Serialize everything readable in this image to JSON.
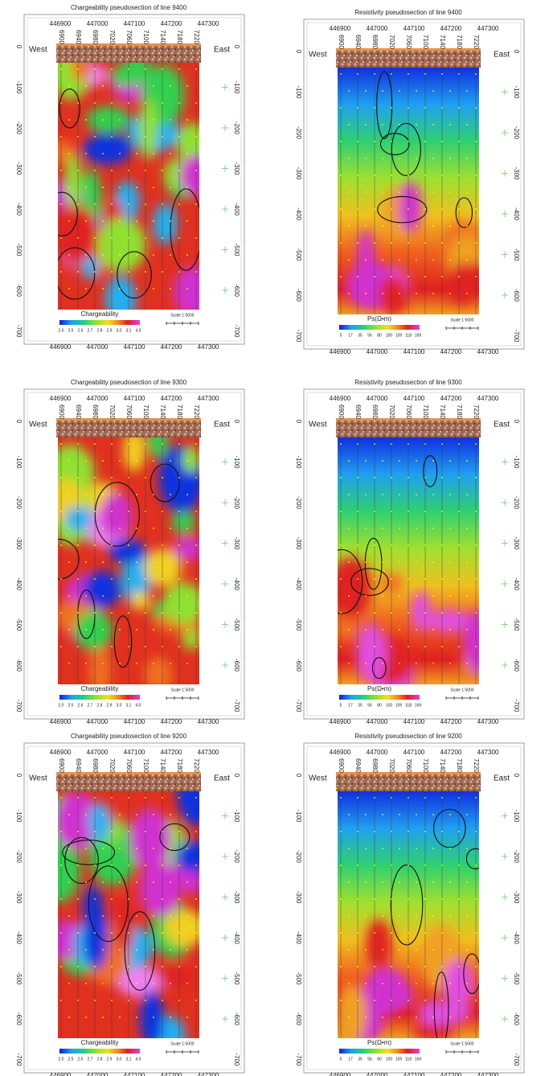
{
  "panels": [
    {
      "title": "Chargeability pseudosection of line 9400",
      "x_ticks": [
        446900,
        447000,
        447100,
        447200,
        447300
      ],
      "stations": [
        6900,
        6940,
        6980,
        7020,
        7060,
        7100,
        7140,
        7180,
        7220
      ],
      "west": "West",
      "east": "East",
      "depth_ticks": [
        0,
        -100,
        -200,
        -300,
        -400,
        -500,
        -600,
        -700
      ],
      "colorbar_label": "Chargeability",
      "colorbar_ticks": [
        {
          "value": 2.0,
          "label": "2.0"
        },
        2.5,
        2.6,
        2.7,
        2.8,
        2.9,
        {
          "value": 3.0,
          "label": "3.0"
        },
        3.1,
        {
          "value": 4.0,
          "label": "4.0"
        }
      ],
      "scale": "Scale 1:5000"
    },
    {
      "title": "Resistivity pseudosection of line 9400",
      "x_ticks": [
        446900,
        447000,
        447100,
        447200,
        447300
      ],
      "stations": [
        6900,
        6940,
        6980,
        7020,
        7060,
        7100,
        7140,
        7180,
        7220
      ],
      "west": "West",
      "east": "East",
      "depth_ticks": [
        0,
        -100,
        -200,
        -300,
        -400,
        -500,
        -600,
        -700
      ],
      "colorbar_label": "Ps(Ω•m)",
      "colorbar_ticks": [
        5,
        17,
        35,
        56,
        80,
        100,
        109,
        118,
        169
      ],
      "scale": "Scale 1:5000"
    },
    {
      "title": "Chargeability pseudosection of line 9300",
      "x_ticks": [
        446900,
        447000,
        447100,
        447200,
        447300
      ],
      "stations": [
        6900,
        6940,
        6980,
        7020,
        7060,
        7100,
        7140,
        7180,
        7220
      ],
      "west": "West",
      "east": "East",
      "depth_ticks": [
        0,
        -100,
        -200,
        -300,
        -400,
        -500,
        -600,
        -700
      ],
      "colorbar_label": "Chargeability",
      "colorbar_ticks": [
        {
          "value": 2.0,
          "label": "2.0"
        },
        2.5,
        2.6,
        2.7,
        2.8,
        2.9,
        {
          "value": 3.0,
          "label": "3.0"
        },
        3.1,
        {
          "value": 4.0,
          "label": "4.0"
        }
      ],
      "scale": "Scale 1:5000"
    },
    {
      "title": "Resistivity pseudosection of line 9300",
      "x_ticks": [
        446900,
        447000,
        447100,
        447200,
        447300
      ],
      "stations": [
        6900,
        6940,
        6980,
        7020,
        7060,
        7100,
        7140,
        7180,
        7220
      ],
      "west": "West",
      "east": "East",
      "depth_ticks": [
        0,
        -100,
        -200,
        -300,
        -400,
        -500,
        -600,
        -700
      ],
      "colorbar_label": "Ps(Ω•m)",
      "colorbar_ticks": [
        5,
        17,
        35,
        56,
        80,
        100,
        109,
        118,
        169
      ],
      "scale": "Scale 1:5000"
    },
    {
      "title": "Chargeability pseudosection of line 9200",
      "x_ticks": [
        446900,
        447000,
        447100,
        447200,
        447300
      ],
      "stations": [
        6900,
        6940,
        6980,
        7020,
        7060,
        7100,
        7140,
        7180,
        7220
      ],
      "west": "West",
      "east": "East",
      "depth_ticks": [
        0,
        -100,
        -200,
        -300,
        -400,
        -500,
        -600,
        -700
      ],
      "colorbar_label": "Chargeability",
      "colorbar_ticks": [
        {
          "value": 2.0,
          "label": "2.0"
        },
        2.5,
        2.6,
        2.7,
        2.8,
        2.9,
        {
          "value": 3.0,
          "label": "3.0"
        },
        3.1,
        {
          "value": 4.0,
          "label": "4.0"
        }
      ],
      "scale": "Scale 1:5000"
    },
    {
      "title": "Resistivity pseudosection of line 9200",
      "x_ticks": [
        446900,
        447000,
        447100,
        447200,
        447300
      ],
      "stations": [
        6900,
        6940,
        6980,
        7020,
        7060,
        7100,
        7140,
        7180,
        7220
      ],
      "west": "West",
      "east": "East",
      "depth_ticks": [
        0,
        -100,
        -200,
        -300,
        -400,
        -500,
        -600,
        -700
      ],
      "colorbar_label": "Ps(Ω•m)",
      "colorbar_ticks": [
        5,
        17,
        35,
        56,
        80,
        100,
        109,
        118,
        169
      ],
      "scale": "Scale 1:5000"
    }
  ]
}
